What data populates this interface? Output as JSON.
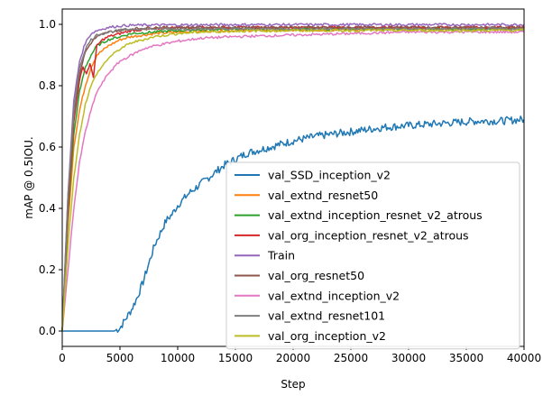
{
  "chart_data": {
    "type": "line",
    "title": "",
    "xlabel": "Step",
    "ylabel": "mAP @ 0.5IOU.",
    "xlim": [
      0,
      40000
    ],
    "ylim": [
      -0.05,
      1.05
    ],
    "x_ticks": [
      0,
      5000,
      10000,
      15000,
      20000,
      25000,
      30000,
      35000,
      40000
    ],
    "x_tick_labels": [
      "0",
      "5000",
      "10000",
      "15000",
      "20000",
      "25000",
      "30000",
      "35000",
      "40000"
    ],
    "y_ticks": [
      0.0,
      0.2,
      0.4,
      0.6,
      0.8,
      1.0
    ],
    "y_tick_labels": [
      "0.0",
      "0.2",
      "0.4",
      "0.6",
      "0.8",
      "1.0"
    ],
    "grid": false,
    "legend_position": "lower-right",
    "series": [
      {
        "name": "val_SSD_inception_v2",
        "color": "#1f77b4",
        "x": [
          0,
          4500,
          5000,
          5500,
          6000,
          6500,
          7000,
          7500,
          8000,
          8500,
          9000,
          9500,
          10000,
          11000,
          12000,
          13000,
          14000,
          15000,
          16000,
          17000,
          18000,
          20000,
          22000,
          24000,
          26000,
          28000,
          30000,
          32000,
          34000,
          36000,
          38000,
          40000
        ],
        "values": [
          0.0,
          0.0,
          0.01,
          0.04,
          0.07,
          0.11,
          0.16,
          0.22,
          0.28,
          0.32,
          0.36,
          0.38,
          0.41,
          0.45,
          0.48,
          0.51,
          0.54,
          0.56,
          0.58,
          0.59,
          0.6,
          0.62,
          0.635,
          0.645,
          0.655,
          0.665,
          0.67,
          0.675,
          0.68,
          0.685,
          0.685,
          0.69
        ]
      },
      {
        "name": "val_extnd_resnet50",
        "color": "#ff7f0e",
        "x": [
          0,
          500,
          1000,
          1500,
          2000,
          2500,
          3000,
          4000,
          5000,
          6000,
          8000,
          10000,
          15000,
          20000,
          30000,
          40000
        ],
        "values": [
          0.0,
          0.35,
          0.6,
          0.72,
          0.8,
          0.86,
          0.9,
          0.93,
          0.95,
          0.96,
          0.97,
          0.975,
          0.98,
          0.98,
          0.985,
          0.985
        ]
      },
      {
        "name": "val_extnd_inception_resnet_v2_atrous",
        "color": "#2ca02c",
        "x": [
          0,
          500,
          1000,
          1500,
          2000,
          2500,
          3000,
          4000,
          5000,
          6000,
          8000,
          10000,
          15000,
          20000,
          30000,
          40000
        ],
        "values": [
          0.0,
          0.38,
          0.64,
          0.78,
          0.86,
          0.9,
          0.93,
          0.95,
          0.96,
          0.97,
          0.975,
          0.98,
          0.985,
          0.985,
          0.985,
          0.985
        ]
      },
      {
        "name": "val_org_inception_resnet_v2_atrous",
        "color": "#d62728",
        "x": [
          0,
          500,
          1000,
          1500,
          1800,
          2100,
          2400,
          2700,
          3000,
          3500,
          4000,
          5000,
          6000,
          8000,
          10000,
          15000,
          20000,
          30000,
          40000
        ],
        "values": [
          0.0,
          0.4,
          0.68,
          0.82,
          0.86,
          0.84,
          0.87,
          0.83,
          0.93,
          0.95,
          0.96,
          0.97,
          0.98,
          0.985,
          0.99,
          0.99,
          0.99,
          0.99,
          0.99
        ]
      },
      {
        "name": "Train",
        "color": "#9467bd",
        "x": [
          0,
          500,
          1000,
          1500,
          2000,
          2500,
          3000,
          4000,
          5000,
          6000,
          8000,
          10000,
          15000,
          20000,
          30000,
          40000
        ],
        "values": [
          0.0,
          0.45,
          0.75,
          0.88,
          0.94,
          0.97,
          0.98,
          0.99,
          0.995,
          0.997,
          0.998,
          0.998,
          0.999,
          0.999,
          0.999,
          0.999
        ]
      },
      {
        "name": "val_org_resnet50",
        "color": "#8c564b",
        "x": [
          0,
          500,
          1000,
          1500,
          2000,
          2500,
          3000,
          4000,
          5000,
          6000,
          8000,
          10000,
          15000,
          20000,
          30000,
          40000
        ],
        "values": [
          0.0,
          0.42,
          0.7,
          0.84,
          0.91,
          0.94,
          0.96,
          0.975,
          0.98,
          0.985,
          0.99,
          0.99,
          0.99,
          0.99,
          0.99,
          0.99
        ]
      },
      {
        "name": "val_extnd_inception_v2",
        "color": "#e377c2",
        "x": [
          0,
          500,
          1000,
          1500,
          2000,
          2500,
          3000,
          4000,
          5000,
          6000,
          7000,
          8000,
          10000,
          12000,
          15000,
          20000,
          25000,
          30000,
          35000,
          40000
        ],
        "values": [
          0.0,
          0.2,
          0.4,
          0.55,
          0.65,
          0.72,
          0.78,
          0.84,
          0.88,
          0.9,
          0.92,
          0.93,
          0.945,
          0.955,
          0.96,
          0.965,
          0.97,
          0.975,
          0.975,
          0.975
        ]
      },
      {
        "name": "val_extnd_resnet101",
        "color": "#7f7f7f",
        "x": [
          0,
          500,
          1000,
          1500,
          2000,
          2500,
          3000,
          4000,
          5000,
          6000,
          8000,
          10000,
          15000,
          20000,
          30000,
          40000
        ],
        "values": [
          0.0,
          0.44,
          0.72,
          0.86,
          0.92,
          0.95,
          0.965,
          0.975,
          0.98,
          0.985,
          0.985,
          0.985,
          0.985,
          0.985,
          0.985,
          0.985
        ]
      },
      {
        "name": "val_org_inception_v2",
        "color": "#bcbd22",
        "x": [
          0,
          500,
          1000,
          1500,
          2000,
          2500,
          3000,
          4000,
          5000,
          6000,
          7000,
          8000,
          10000,
          12000,
          15000,
          20000,
          30000,
          40000
        ],
        "values": [
          0.0,
          0.28,
          0.5,
          0.64,
          0.74,
          0.8,
          0.84,
          0.89,
          0.92,
          0.94,
          0.95,
          0.96,
          0.97,
          0.975,
          0.978,
          0.98,
          0.98,
          0.98
        ]
      }
    ]
  }
}
